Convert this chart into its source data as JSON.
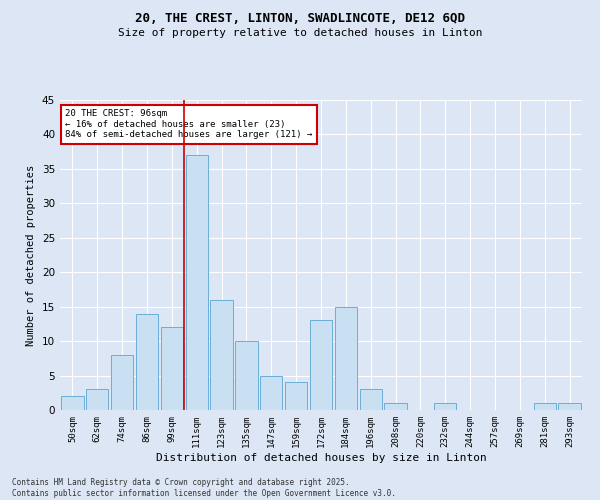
{
  "title1": "20, THE CREST, LINTON, SWADLINCOTE, DE12 6QD",
  "title2": "Size of property relative to detached houses in Linton",
  "xlabel": "Distribution of detached houses by size in Linton",
  "ylabel": "Number of detached properties",
  "categories": [
    "50sqm",
    "62sqm",
    "74sqm",
    "86sqm",
    "99sqm",
    "111sqm",
    "123sqm",
    "135sqm",
    "147sqm",
    "159sqm",
    "172sqm",
    "184sqm",
    "196sqm",
    "208sqm",
    "220sqm",
    "232sqm",
    "244sqm",
    "257sqm",
    "269sqm",
    "281sqm",
    "293sqm"
  ],
  "values": [
    2,
    3,
    8,
    14,
    12,
    37,
    16,
    10,
    5,
    4,
    13,
    15,
    3,
    1,
    0,
    1,
    0,
    0,
    0,
    1,
    1
  ],
  "bar_color": "#c9dff2",
  "bar_edge_color": "#6aaed6",
  "red_line_index": 4,
  "annotation_title": "20 THE CREST: 96sqm",
  "annotation_line1": "← 16% of detached houses are smaller (23)",
  "annotation_line2": "84% of semi-detached houses are larger (121) →",
  "annotation_box_color": "#ffffff",
  "annotation_box_edge_color": "#cc0000",
  "ylim": [
    0,
    45
  ],
  "yticks": [
    0,
    5,
    10,
    15,
    20,
    25,
    30,
    35,
    40,
    45
  ],
  "background_color": "#dce6f5",
  "grid_color": "#ffffff",
  "footer1": "Contains HM Land Registry data © Crown copyright and database right 2025.",
  "footer2": "Contains public sector information licensed under the Open Government Licence v3.0."
}
